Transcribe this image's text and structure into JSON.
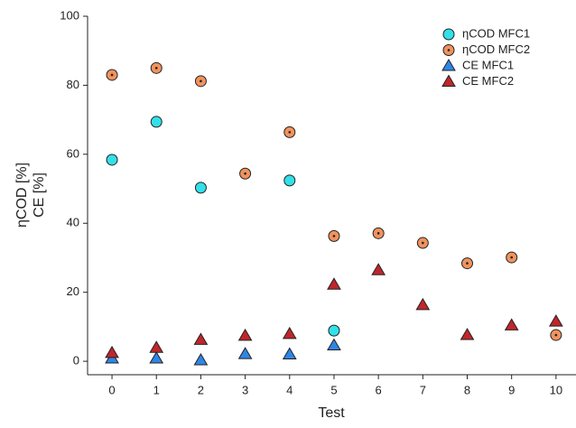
{
  "chart_data": {
    "type": "scatter",
    "xlabel": "Test",
    "ylabel": [
      "ηCOD [%]",
      "CE [%]"
    ],
    "x": [
      0,
      1,
      2,
      3,
      4,
      5,
      6,
      7,
      8,
      9,
      10
    ],
    "xlim": [
      -0.55,
      10.45
    ],
    "xticks": [
      0,
      1,
      2,
      3,
      4,
      5,
      6,
      7,
      8,
      9,
      10
    ],
    "ylim": [
      -3.9,
      100
    ],
    "yticks": [
      0,
      20,
      40,
      60,
      80,
      100
    ],
    "series": [
      {
        "name": "ηCOD MFC1",
        "color": "#33e0e8",
        "marker": "circle",
        "dot": false,
        "values": [
          58.4,
          69.4,
          50.3,
          null,
          52.4,
          8.9,
          null,
          null,
          null,
          null,
          null
        ]
      },
      {
        "name": "ηCOD MFC2",
        "color": "#f0935e",
        "marker": "circle",
        "dot": true,
        "values": [
          83,
          85,
          81.2,
          54.4,
          66.4,
          36.3,
          37.1,
          34.3,
          28.4,
          30.1,
          7.6
        ]
      },
      {
        "name": "CE MFC1",
        "color": "#2f86e6",
        "marker": "triangle",
        "dot": false,
        "values": [
          0.8,
          0.8,
          0.3,
          2.1,
          2.0,
          4.6,
          null,
          null,
          null,
          null,
          null
        ]
      },
      {
        "name": "CE MFC2",
        "color": "#c0262b",
        "marker": "triangle",
        "dot": false,
        "values": [
          2.4,
          3.9,
          6.2,
          7.4,
          7.9,
          22.2,
          26.4,
          16.3,
          7.6,
          10.4,
          11.5
        ]
      }
    ]
  }
}
